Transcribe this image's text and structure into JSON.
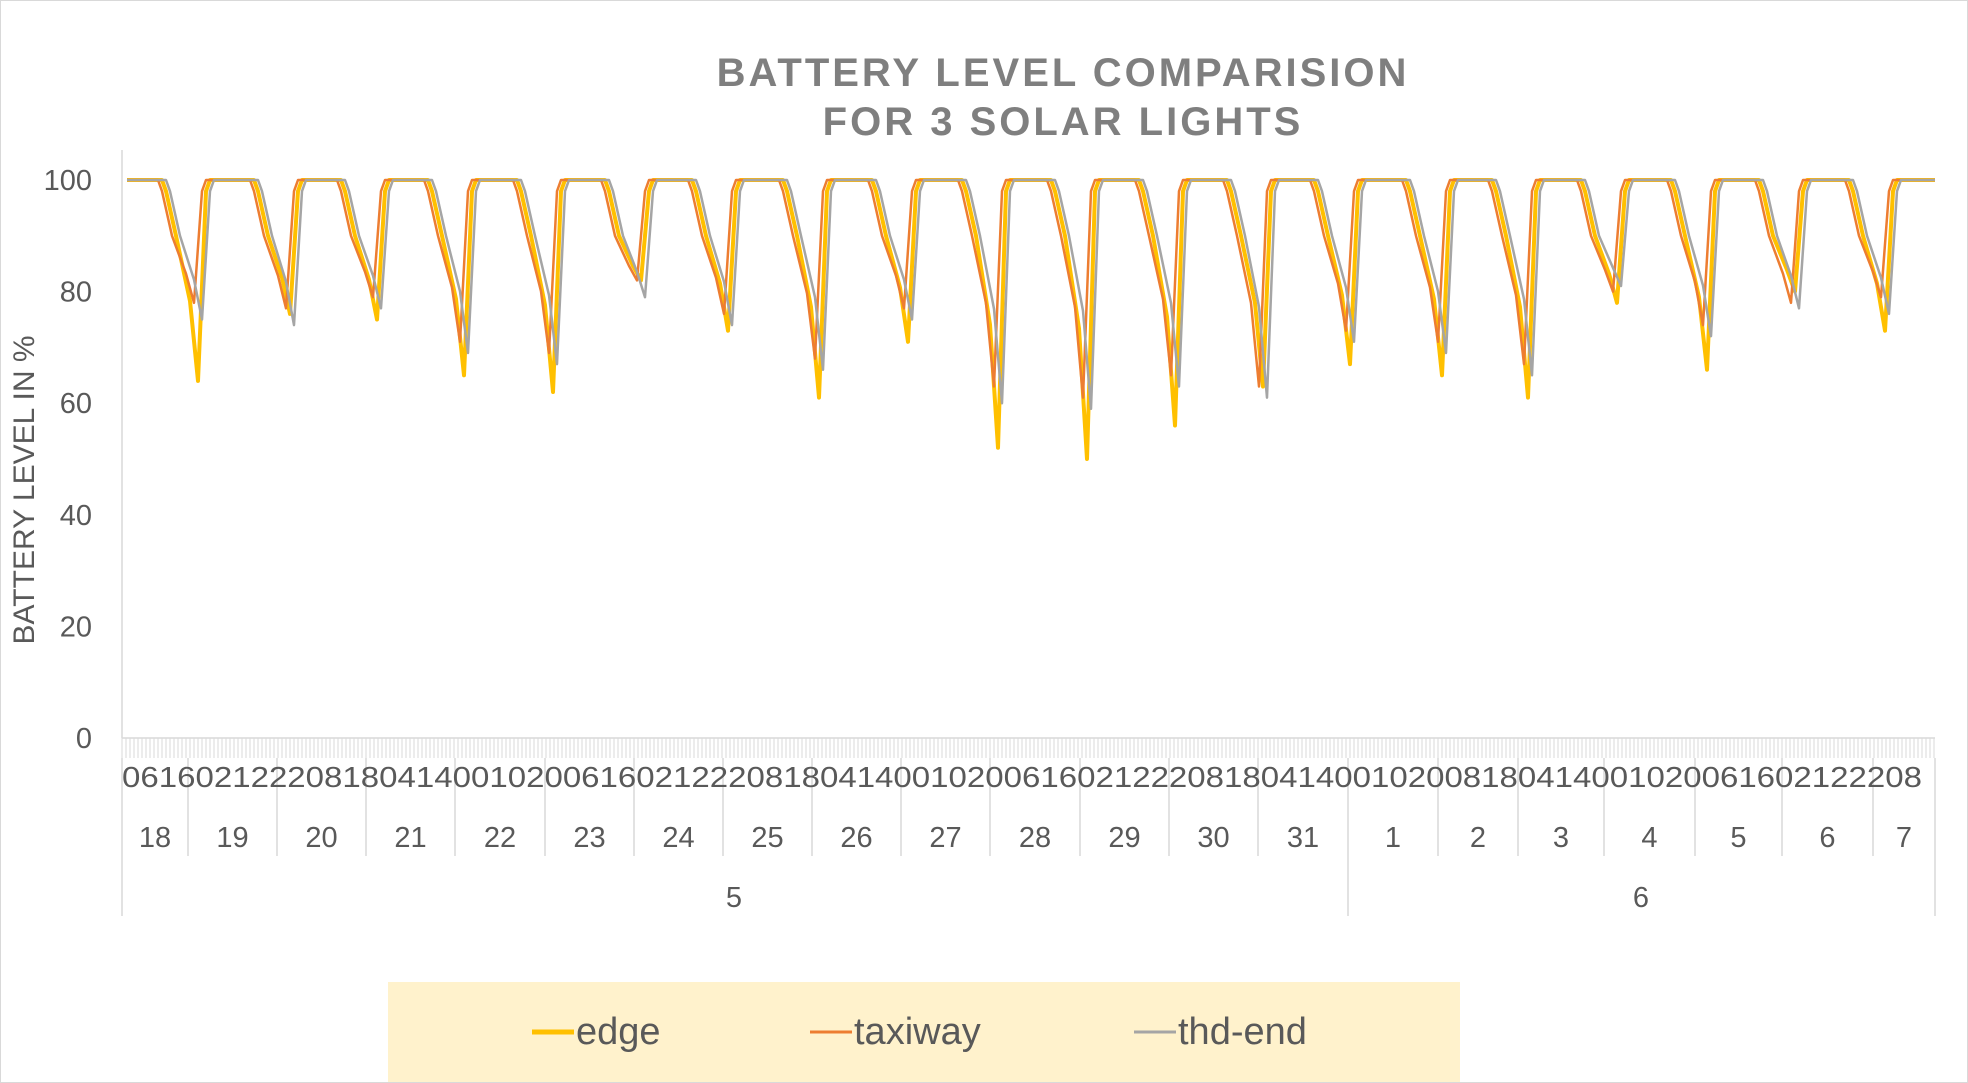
{
  "chart_data": {
    "type": "line",
    "title_line1": "BATTERY LEVEL COMPARISION",
    "title_line2": "FOR 3 SOLAR LIGHTS",
    "ylabel": "BATTERY LEVEL IN %",
    "ylim": [
      0,
      100
    ],
    "y_ticks": [
      "0",
      "20",
      "40",
      "60",
      "80",
      "100"
    ],
    "grid": false,
    "legend_position": "bottom",
    "hour_ticks_label": "06160212220818041400102006160212220818041400102006160212220818041400102008180414001020061602122208",
    "days": [
      "18",
      "19",
      "20",
      "21",
      "22",
      "23",
      "24",
      "25",
      "26",
      "27",
      "28",
      "29",
      "30",
      "31",
      "1",
      "2",
      "3",
      "4",
      "5",
      "6",
      "7"
    ],
    "months": [
      "5",
      "6"
    ],
    "series": [
      {
        "name": "edge",
        "color": "#ffc000",
        "daily_minimum": [
          64,
          76,
          75,
          65,
          62,
          82,
          73,
          61,
          71,
          52,
          50,
          56,
          63,
          67,
          65,
          61,
          78,
          66,
          80,
          73
        ]
      },
      {
        "name": "taxiway",
        "color": "#ed7d31",
        "daily_minimum": [
          78,
          77,
          79,
          71,
          69,
          82,
          76,
          68,
          77,
          63,
          61,
          65,
          63,
          73,
          71,
          67,
          80,
          74,
          78,
          79
        ]
      },
      {
        "name": "thd-end",
        "color": "#a5a5a5",
        "daily_minimum": [
          75,
          74,
          77,
          69,
          67,
          79,
          74,
          66,
          75,
          60,
          59,
          63,
          61,
          71,
          69,
          65,
          81,
          72,
          77,
          76
        ]
      }
    ]
  }
}
